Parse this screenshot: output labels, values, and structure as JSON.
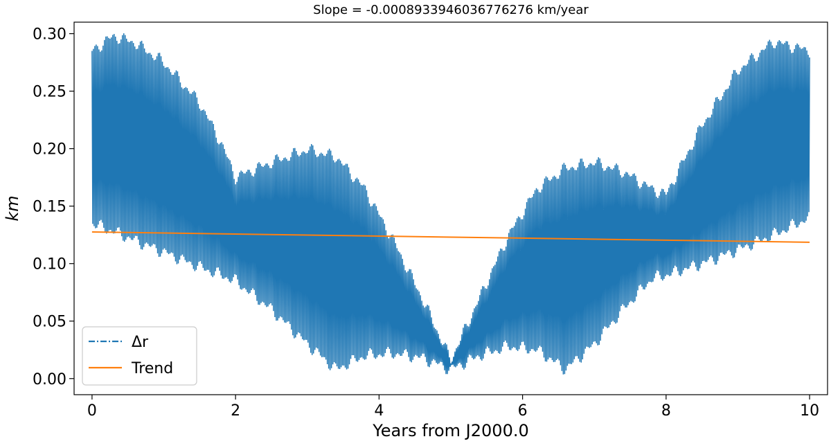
{
  "chart_data": {
    "type": "line",
    "title": "Slope = -0.0008933946036776276 km/year",
    "xlabel": "Years from J2000.0",
    "ylabel": "km",
    "xlim": [
      -0.25,
      10.25
    ],
    "ylim": [
      -0.014,
      0.31
    ],
    "x_ticks": [
      0,
      2,
      4,
      6,
      8,
      10
    ],
    "x_tick_labels": [
      "0",
      "2",
      "4",
      "6",
      "8",
      "10"
    ],
    "y_ticks": [
      0.0,
      0.05,
      0.1,
      0.15,
      0.2,
      0.25,
      0.3
    ],
    "y_tick_labels": [
      "0.00",
      "0.05",
      "0.10",
      "0.15",
      "0.20",
      "0.25",
      "0.30"
    ],
    "grid": false,
    "legend": {
      "position": "lower-left"
    },
    "colors": {
      "delta_r": "#1f77b4",
      "trend": "#ff7f0e"
    },
    "series": [
      {
        "name": "Δr",
        "style": "dash-dot",
        "oscillation_cycles": 520,
        "x": [
          0,
          0.3,
          0.6,
          1.0,
          1.5,
          1.8,
          2.0,
          2.5,
          3.0,
          3.4,
          3.8,
          4.2,
          4.6,
          5.0,
          5.4,
          5.8,
          6.2,
          6.6,
          7.0,
          7.4,
          7.8,
          8.0,
          8.5,
          9.0,
          9.5,
          10.0
        ],
        "upper": [
          0.285,
          0.298,
          0.292,
          0.275,
          0.24,
          0.205,
          0.175,
          0.188,
          0.199,
          0.193,
          0.165,
          0.12,
          0.07,
          0.016,
          0.07,
          0.124,
          0.165,
          0.183,
          0.188,
          0.18,
          0.165,
          0.16,
          0.22,
          0.268,
          0.293,
          0.285
        ],
        "lower": [
          0.135,
          0.128,
          0.12,
          0.11,
          0.097,
          0.09,
          0.085,
          0.06,
          0.03,
          0.008,
          0.02,
          0.022,
          0.018,
          0.008,
          0.02,
          0.028,
          0.025,
          0.008,
          0.03,
          0.06,
          0.087,
          0.09,
          0.1,
          0.112,
          0.125,
          0.14
        ]
      },
      {
        "name": "Trend",
        "style": "solid",
        "x": [
          0,
          10
        ],
        "y": [
          0.1275,
          0.1186
        ]
      }
    ]
  }
}
